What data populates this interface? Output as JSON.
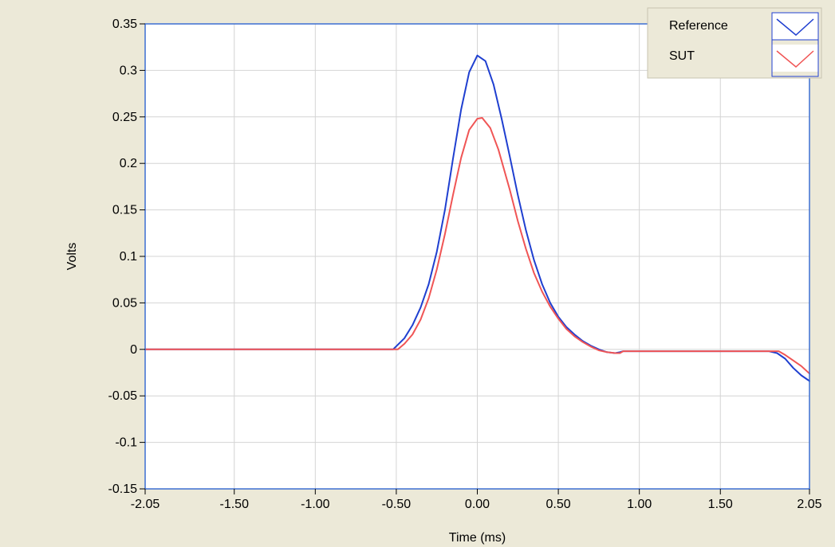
{
  "chart_data": {
    "type": "line",
    "title": "",
    "xlabel": "Time (ms)",
    "ylabel": "Volts",
    "xlim": [
      -2.05,
      2.05
    ],
    "ylim": [
      -0.15,
      0.35
    ],
    "xticks": [
      -2.05,
      -1.5,
      -1.0,
      -0.5,
      0.0,
      0.5,
      1.0,
      1.5,
      2.05
    ],
    "xtick_labels": [
      "-2.05",
      "-1.50",
      "-1.00",
      "-0.50",
      "0.00",
      "0.50",
      "1.00",
      "1.50",
      "2.05"
    ],
    "yticks": [
      -0.15,
      -0.1,
      -0.05,
      0,
      0.05,
      0.1,
      0.15,
      0.2,
      0.25,
      0.3,
      0.35
    ],
    "ytick_labels": [
      "-0.15",
      "-0.1",
      "-0.05",
      "0",
      "0.05",
      "0.1",
      "0.15",
      "0.2",
      "0.25",
      "0.3",
      "0.35"
    ],
    "grid": true,
    "legend_position": "top-right",
    "colors": {
      "frame_bg": "#ece9d8",
      "plot_bg": "#ffffff",
      "grid": "#d4d4d4",
      "axis": "#3c6fd2",
      "legend_bg": "#ece9d8"
    },
    "series": [
      {
        "name": "Reference",
        "color": "#1f3fd0",
        "x": [
          -2.05,
          -0.52,
          -0.45,
          -0.4,
          -0.35,
          -0.3,
          -0.25,
          -0.2,
          -0.15,
          -0.1,
          -0.05,
          0.0,
          0.05,
          0.1,
          0.15,
          0.2,
          0.25,
          0.3,
          0.35,
          0.4,
          0.45,
          0.5,
          0.55,
          0.6,
          0.65,
          0.7,
          0.75,
          0.8,
          0.85,
          0.88,
          0.9,
          1.0,
          1.5,
          1.8,
          1.85,
          1.9,
          1.95,
          2.0,
          2.05
        ],
        "y": [
          0,
          0,
          0.012,
          0.026,
          0.045,
          0.07,
          0.105,
          0.15,
          0.205,
          0.258,
          0.298,
          0.316,
          0.31,
          0.285,
          0.248,
          0.208,
          0.166,
          0.128,
          0.096,
          0.07,
          0.05,
          0.035,
          0.024,
          0.016,
          0.009,
          0.004,
          0.0,
          -0.003,
          -0.004,
          -0.003,
          -0.002,
          -0.002,
          -0.002,
          -0.002,
          -0.004,
          -0.01,
          -0.02,
          -0.028,
          -0.034
        ]
      },
      {
        "name": "SUT",
        "color": "#f05555",
        "x": [
          -2.05,
          -0.49,
          -0.45,
          -0.4,
          -0.35,
          -0.3,
          -0.25,
          -0.2,
          -0.15,
          -0.1,
          -0.05,
          0.0,
          0.03,
          0.08,
          0.13,
          0.2,
          0.25,
          0.3,
          0.35,
          0.4,
          0.45,
          0.5,
          0.55,
          0.6,
          0.65,
          0.7,
          0.75,
          0.8,
          0.85,
          0.88,
          0.9,
          1.0,
          1.5,
          1.82,
          1.86,
          1.9,
          1.95,
          2.0,
          2.05
        ],
        "y": [
          0,
          0,
          0.006,
          0.016,
          0.032,
          0.055,
          0.086,
          0.124,
          0.166,
          0.206,
          0.236,
          0.248,
          0.249,
          0.238,
          0.215,
          0.172,
          0.138,
          0.108,
          0.082,
          0.062,
          0.046,
          0.033,
          0.022,
          0.014,
          0.008,
          0.003,
          -0.001,
          -0.003,
          -0.004,
          -0.004,
          -0.002,
          -0.002,
          -0.002,
          -0.002,
          -0.002,
          -0.006,
          -0.012,
          -0.018,
          -0.026
        ]
      }
    ]
  }
}
